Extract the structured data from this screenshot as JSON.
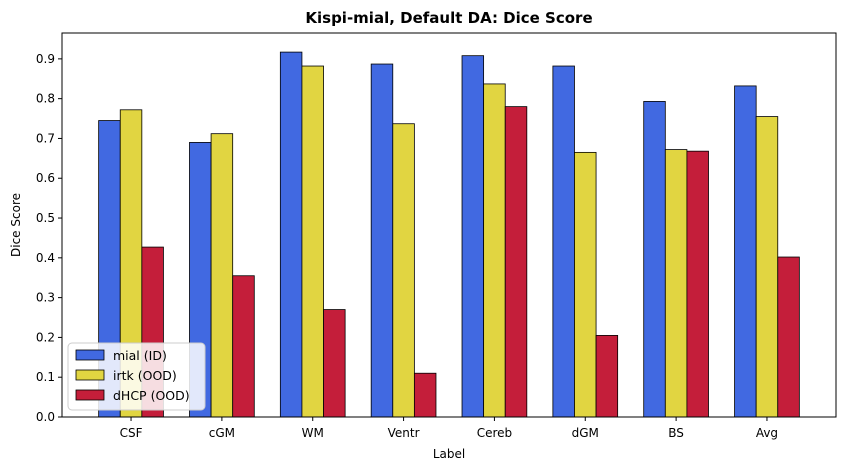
{
  "chart_data": {
    "type": "bar",
    "title": "Kispi-mial, Default DA: Dice Score",
    "xlabel": "Label",
    "ylabel": "Dice Score",
    "ylim": [
      0,
      0.965
    ],
    "yticks": [
      "0.0",
      "0.1",
      "0.2",
      "0.3",
      "0.4",
      "0.5",
      "0.6",
      "0.7",
      "0.8",
      "0.9"
    ],
    "categories": [
      "CSF",
      "cGM",
      "WM",
      "Ventr",
      "Cereb",
      "dGM",
      "BS",
      "Avg"
    ],
    "series": [
      {
        "name": "mial (ID)",
        "color": "#4169e1",
        "values": [
          0.745,
          0.69,
          0.917,
          0.887,
          0.908,
          0.882,
          0.793,
          0.832
        ]
      },
      {
        "name": "irtk (OOD)",
        "color": "#e1d541",
        "values": [
          0.772,
          0.712,
          0.882,
          0.737,
          0.837,
          0.665,
          0.672,
          0.755
        ]
      },
      {
        "name": "dHCP (OOD)",
        "color": "#c41e3a",
        "values": [
          0.427,
          0.355,
          0.27,
          0.11,
          0.78,
          0.205,
          0.668,
          0.402
        ]
      }
    ],
    "grid": false,
    "legend_position": "lower-left"
  }
}
